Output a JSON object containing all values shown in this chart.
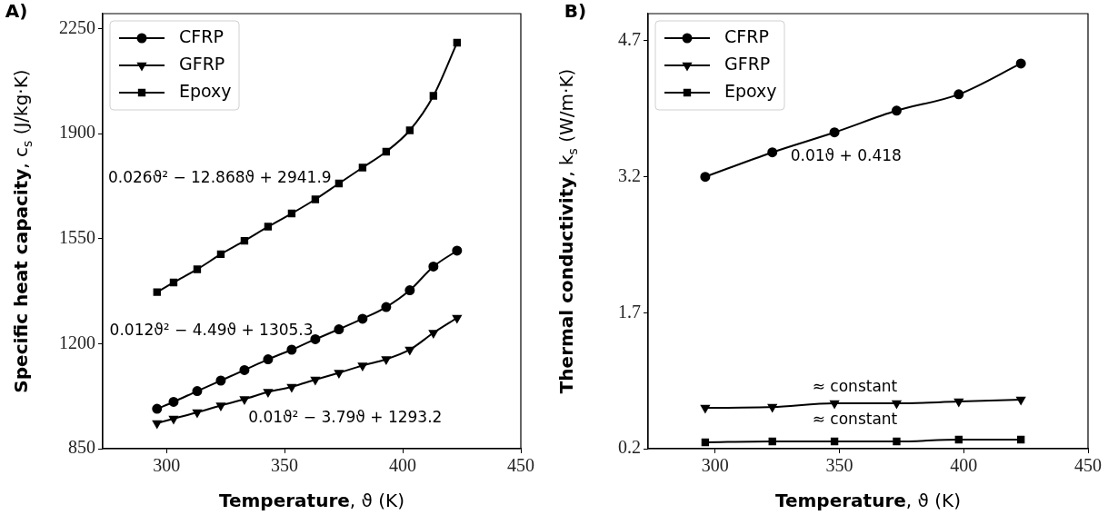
{
  "chart_data": [
    {
      "type": "line",
      "title": "A)",
      "xlabel": "**Temperature**, ϑ (K)",
      "ylabel": "**Specific heat capacity**, c$_{s}$ (J/kg·K)",
      "x": [
        296,
        303,
        313,
        323,
        333,
        343,
        353,
        363,
        373,
        383,
        393,
        403,
        413,
        423
      ],
      "series": [
        {
          "name": "CFRP",
          "color": "#000000",
          "marker": "circle",
          "values": [
            983,
            1006,
            1042,
            1077,
            1112,
            1148,
            1180,
            1215,
            1248,
            1283,
            1322,
            1378,
            1457,
            1510
          ]
        },
        {
          "name": "GFRP",
          "color": "#000000",
          "marker": "triangle",
          "values": [
            935,
            950,
            971,
            994,
            1015,
            1039,
            1056,
            1080,
            1103,
            1127,
            1148,
            1180,
            1236,
            1286
          ]
        },
        {
          "name": "Epoxy",
          "color": "#000000",
          "marker": "square",
          "values": [
            1372,
            1404,
            1448,
            1498,
            1543,
            1590,
            1634,
            1681,
            1734,
            1787,
            1840,
            1911,
            2026,
            2203
          ]
        }
      ],
      "xlim": [
        273,
        450
      ],
      "xticks": [
        300,
        350,
        400,
        450
      ],
      "ylim": [
        850,
        2300
      ],
      "yticks": [
        850,
        1200,
        1550,
        1900,
        2250
      ],
      "grid": false,
      "legend": "top left",
      "line_style": "solid",
      "annotations": [
        "0.026ϑ² − 12.868ϑ + 2941.9",
        "0.012ϑ² − 4.49ϑ + 1305.3",
        "0.01ϑ² − 3.79ϑ + 1293.2"
      ]
    },
    {
      "type": "line",
      "title": "B)",
      "xlabel": "**Temperature**, ϑ (K)",
      "ylabel": "**Thermal conductivity**, k$_{s}$ (W/m·K)",
      "x": [
        296,
        323,
        348,
        373,
        398,
        423
      ],
      "series": [
        {
          "name": "CFRP",
          "color": "#000000",
          "marker": "circle",
          "values": [
            3.2,
            3.47,
            3.69,
            3.93,
            4.11,
            4.45
          ]
        },
        {
          "name": "GFRP",
          "color": "#000000",
          "marker": "triangle",
          "values": [
            0.65,
            0.66,
            0.7,
            0.7,
            0.72,
            0.74
          ]
        },
        {
          "name": "Epoxy",
          "color": "#000000",
          "marker": "square",
          "values": [
            0.27,
            0.28,
            0.28,
            0.28,
            0.3,
            0.3
          ]
        }
      ],
      "xlim": [
        273,
        450
      ],
      "xticks": [
        300,
        350,
        400,
        450
      ],
      "ylim": [
        0.2,
        5.0
      ],
      "yticks": [
        0.2,
        1.7,
        3.2,
        4.7
      ],
      "grid": false,
      "legend": "top left",
      "line_style": "solid",
      "annotations": [
        "0.01ϑ + 0.418",
        "≈ constant",
        "≈ constant"
      ]
    }
  ]
}
